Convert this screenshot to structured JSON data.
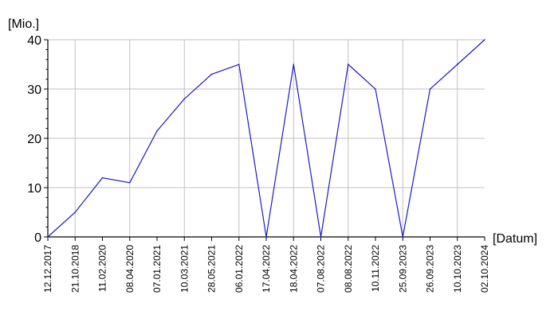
{
  "chart_data": {
    "type": "line",
    "xlabel": "[Datum]",
    "ylabel": "[Mio.]",
    "ylim": [
      0,
      40
    ],
    "y_ticks": [
      0,
      10,
      20,
      30,
      40
    ],
    "grid": true,
    "x": [
      "12.12.2017",
      "21.10.2018",
      "11.02.2020",
      "08.04.2020",
      "07.01.2021",
      "10.03.2021",
      "28.05.2021",
      "06.01.2022",
      "17.04.2022",
      "18.04.2022",
      "07.08.2022",
      "08.08.2022",
      "10.11.2022",
      "25.09.2023",
      "26.09.2023",
      "10.10.2023",
      "02.10.2024"
    ],
    "series": [
      {
        "values": [
          0,
          5,
          12,
          11,
          21.5,
          28,
          33,
          35,
          0,
          35,
          0,
          35,
          30,
          0,
          30,
          35,
          40
        ],
        "color": "#1a1acc"
      }
    ],
    "colors": {
      "grid": "#c0c0c0",
      "axis": "#000000"
    }
  }
}
